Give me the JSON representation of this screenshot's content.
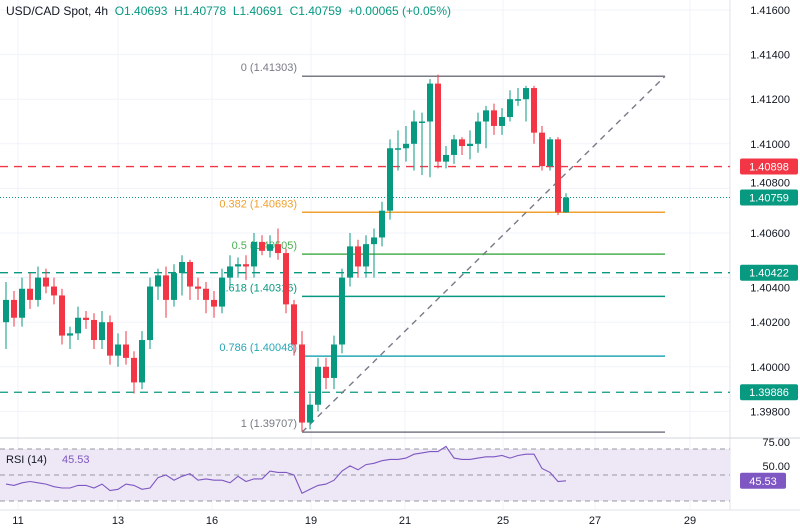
{
  "header": {
    "symbol": "USD/CAD Spot, 4h",
    "open": "O1.40693",
    "high": "H1.40778",
    "low": "L1.40691",
    "close": "C1.40759",
    "change": "+0.00065 (+0.05%)"
  },
  "colors": {
    "up": "#089981",
    "down": "#f23645",
    "rsi": "#7e57c2",
    "rsi_band": "#ede7f6",
    "fib_0382": "#f0a030",
    "fib_05": "#4caf50",
    "fib_0618": "#089981",
    "fib_0786": "#26a6b5",
    "fib_edge": "#787b86"
  },
  "chart_data": {
    "type": "candlestick",
    "title": "USD/CAD Spot, 4h",
    "ylim": [
      1.3964,
      1.4163
    ],
    "y_ticks": [
      "1.41600",
      "1.41400",
      "1.41200",
      "1.41000",
      "1.40800",
      "1.40600",
      "1.40400",
      "1.40200",
      "1.40000",
      "1.39800"
    ],
    "x_ticks": [
      "11",
      "13",
      "16",
      "19",
      "21",
      "25",
      "27",
      "29"
    ],
    "ohlc": [
      [
        1.402,
        1.4038,
        1.4008,
        1.403
      ],
      [
        1.403,
        1.4034,
        1.4018,
        1.4022
      ],
      [
        1.4022,
        1.404,
        1.4018,
        1.4035
      ],
      [
        1.4035,
        1.4042,
        1.4026,
        1.403
      ],
      [
        1.403,
        1.4045,
        1.4027,
        1.404
      ],
      [
        1.404,
        1.4044,
        1.4033,
        1.4036
      ],
      [
        1.4036,
        1.404,
        1.4028,
        1.4032
      ],
      [
        1.4032,
        1.4035,
        1.401,
        1.4014
      ],
      [
        1.4014,
        1.4018,
        1.4008,
        1.4015
      ],
      [
        1.4015,
        1.4027,
        1.4012,
        1.4022
      ],
      [
        1.4022,
        1.4025,
        1.4017,
        1.4021
      ],
      [
        1.4021,
        1.4024,
        1.4008,
        1.4012
      ],
      [
        1.4012,
        1.4025,
        1.4008,
        1.402
      ],
      [
        1.402,
        1.4023,
        1.4001,
        1.4005
      ],
      [
        1.4005,
        1.4015,
        1.4,
        1.401
      ],
      [
        1.401,
        1.4016,
        1.4001,
        1.4004
      ],
      [
        1.4004,
        1.4007,
        1.3988,
        1.3993
      ],
      [
        1.3993,
        1.4016,
        1.399,
        1.4012
      ],
      [
        1.4012,
        1.404,
        1.4008,
        1.4036
      ],
      [
        1.4036,
        1.4044,
        1.403,
        1.4041
      ],
      [
        1.4041,
        1.4045,
        1.4022,
        1.403
      ],
      [
        1.403,
        1.4046,
        1.4027,
        1.4042
      ],
      [
        1.4042,
        1.405,
        1.4032,
        1.4047
      ],
      [
        1.4047,
        1.4048,
        1.403,
        1.4036
      ],
      [
        1.4036,
        1.404,
        1.403,
        1.4035
      ],
      [
        1.4035,
        1.4038,
        1.4024,
        1.403
      ],
      [
        1.403,
        1.4034,
        1.4022,
        1.4027
      ],
      [
        1.4027,
        1.4044,
        1.4024,
        1.404
      ],
      [
        1.404,
        1.405,
        1.4036,
        1.4045
      ],
      [
        1.4045,
        1.4049,
        1.404,
        1.4046
      ],
      [
        1.4046,
        1.405,
        1.4039,
        1.4045
      ],
      [
        1.4045,
        1.406,
        1.404,
        1.4056
      ],
      [
        1.4056,
        1.4059,
        1.405,
        1.4052
      ],
      [
        1.4052,
        1.4059,
        1.4049,
        1.4055
      ],
      [
        1.4055,
        1.4062,
        1.4048,
        1.4051
      ],
      [
        1.4051,
        1.4053,
        1.4024,
        1.4028
      ],
      [
        1.4028,
        1.403,
        1.4005,
        1.401
      ],
      [
        1.401,
        1.4016,
        1.3971,
        1.3975
      ],
      [
        1.3975,
        1.3988,
        1.3972,
        1.3983
      ],
      [
        1.3983,
        1.4004,
        1.398,
        1.4
      ],
      [
        1.4,
        1.4004,
        1.399,
        1.3995
      ],
      [
        1.3995,
        1.4014,
        1.399,
        1.401
      ],
      [
        1.401,
        1.4044,
        1.4006,
        1.404
      ],
      [
        1.404,
        1.406,
        1.4036,
        1.4054
      ],
      [
        1.4054,
        1.4057,
        1.404,
        1.4045
      ],
      [
        1.4045,
        1.4059,
        1.404,
        1.4055
      ],
      [
        1.4055,
        1.4062,
        1.404,
        1.4058
      ],
      [
        1.4058,
        1.4074,
        1.4054,
        1.407
      ],
      [
        1.407,
        1.4102,
        1.4066,
        1.4098
      ],
      [
        1.4098,
        1.4106,
        1.4088,
        1.4098
      ],
      [
        1.4098,
        1.4108,
        1.4092,
        1.41
      ],
      [
        1.41,
        1.4115,
        1.4088,
        1.411
      ],
      [
        1.411,
        1.4114,
        1.4086,
        1.411
      ],
      [
        1.411,
        1.4129,
        1.4085,
        1.4127
      ],
      [
        1.4127,
        1.4131,
        1.4089,
        1.4092
      ],
      [
        1.4092,
        1.4099,
        1.4089,
        1.4095
      ],
      [
        1.4095,
        1.4104,
        1.4091,
        1.4102
      ],
      [
        1.4102,
        1.4103,
        1.4095,
        1.4099
      ],
      [
        1.4099,
        1.4106,
        1.4093,
        1.41
      ],
      [
        1.41,
        1.4114,
        1.4096,
        1.411
      ],
      [
        1.411,
        1.4117,
        1.4098,
        1.4115
      ],
      [
        1.4115,
        1.4118,
        1.4104,
        1.4108
      ],
      [
        1.4108,
        1.4116,
        1.4104,
        1.4112
      ],
      [
        1.4112,
        1.4124,
        1.411,
        1.412
      ],
      [
        1.412,
        1.4125,
        1.4117,
        1.412
      ],
      [
        1.412,
        1.4126,
        1.411,
        1.4125
      ],
      [
        1.4125,
        1.4126,
        1.41,
        1.4105
      ],
      [
        1.4105,
        1.4108,
        1.4088,
        1.409
      ],
      [
        1.409,
        1.4103,
        1.4088,
        1.4102
      ],
      [
        1.4102,
        1.4103,
        1.4068,
        1.40693
      ],
      [
        1.40693,
        1.40778,
        1.40691,
        1.40759
      ]
    ],
    "fib_levels": [
      {
        "label": "0 (1.41303)",
        "value": 1.41303,
        "color": "#787b86"
      },
      {
        "label": "0.382 (1.40693)",
        "value": 1.40693,
        "color": "#f0a030"
      },
      {
        "label": "0.5 (1.40505)",
        "value": 1.40505,
        "color": "#4caf50"
      },
      {
        "label": "0.618 (1.40316)",
        "value": 1.40316,
        "color": "#089981"
      },
      {
        "label": "0.786 (1.40048)",
        "value": 1.40048,
        "color": "#26a6b5"
      },
      {
        "label": "1 (1.39707)",
        "value": 1.39707,
        "color": "#787b86"
      }
    ],
    "horizontal_levels": [
      {
        "label": "1.40898",
        "value": 1.40898,
        "color": "#f23645"
      },
      {
        "label": "1.40422",
        "value": 1.40422,
        "color": "#089981"
      },
      {
        "label": "1.39886",
        "value": 1.39886,
        "color": "#089981"
      }
    ],
    "last_price": {
      "label": "1.40759",
      "value": 1.40759,
      "color": "#089981"
    },
    "rsi": {
      "label": "RSI (14)",
      "value_label": "45.53",
      "ticks": [
        "75.00",
        "50.00"
      ],
      "bands": [
        70,
        50,
        30
      ],
      "ylim": [
        20,
        80
      ],
      "values": [
        43,
        42,
        44,
        45,
        44,
        43,
        41,
        40,
        40,
        42,
        42,
        40,
        43,
        38,
        39,
        43,
        42,
        39,
        40,
        48,
        50,
        46,
        49,
        51,
        46,
        47,
        46,
        46,
        44,
        49,
        45,
        47,
        47,
        53,
        52,
        52,
        50,
        36,
        39,
        42,
        43,
        46,
        53,
        57,
        54,
        58,
        59,
        61,
        62,
        62,
        63,
        66,
        67,
        68,
        68,
        72,
        63,
        62,
        62,
        63,
        64,
        64,
        65,
        63,
        65,
        66,
        66,
        55,
        52,
        45,
        45.53
      ]
    }
  }
}
